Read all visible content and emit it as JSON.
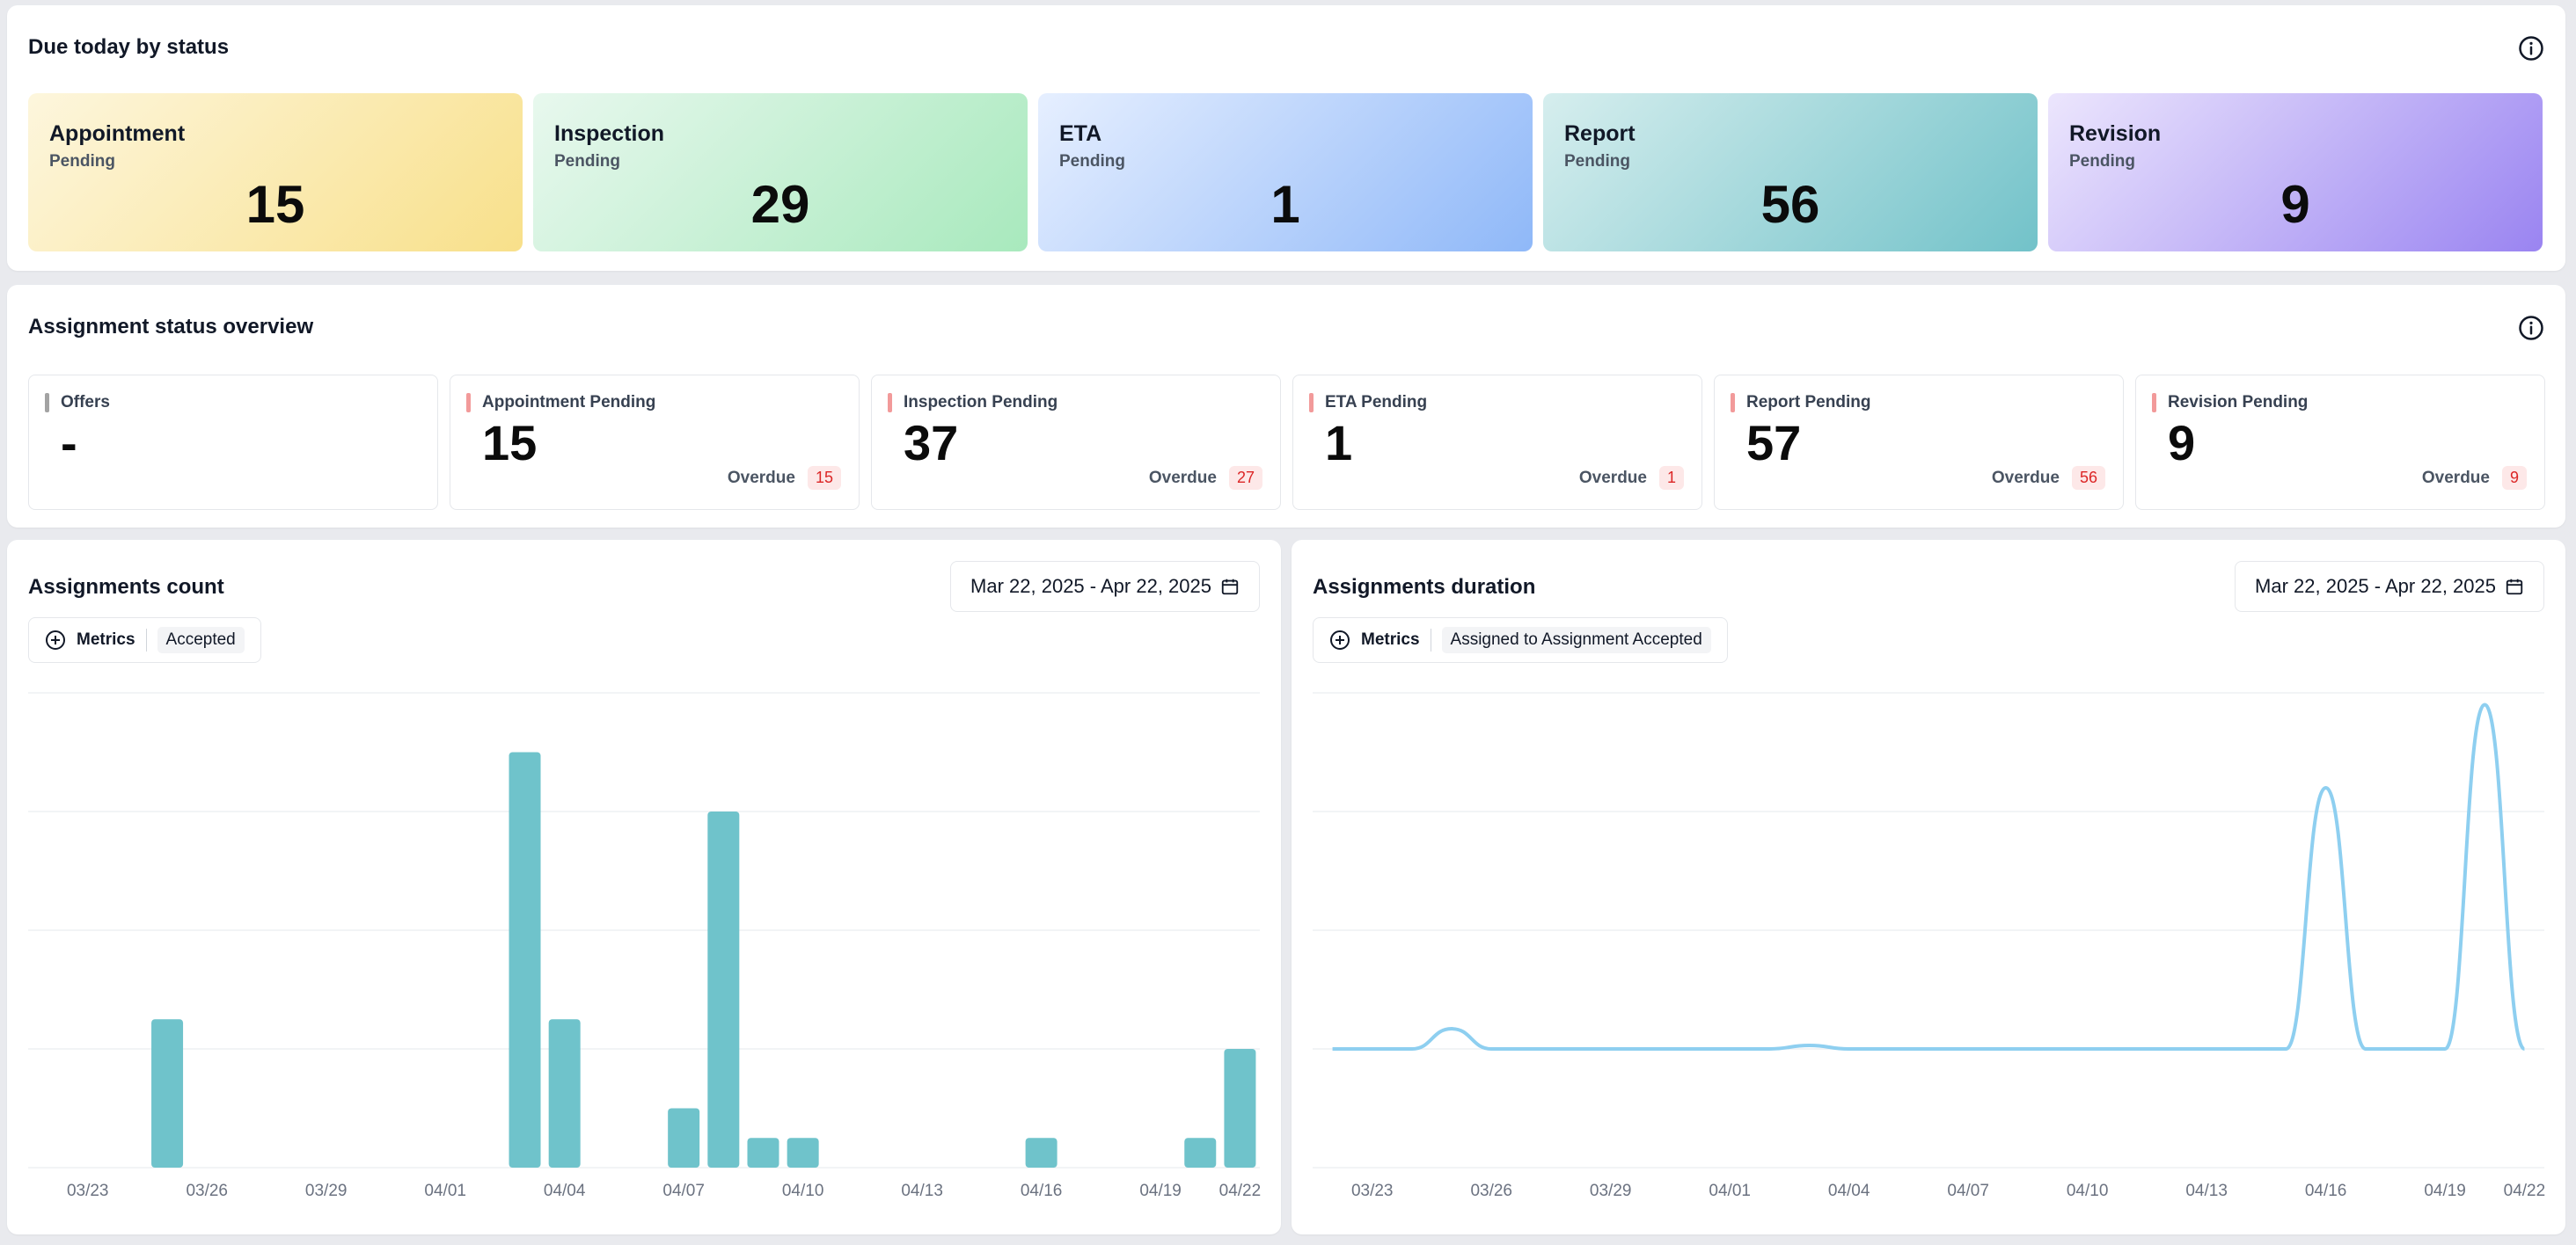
{
  "due_today": {
    "title": "Due today by status",
    "cards": [
      {
        "label": "Appointment",
        "sub": "Pending",
        "value": "15",
        "grad_from": "#fdf6dd",
        "grad_to": "#f8e08a"
      },
      {
        "label": "Inspection",
        "sub": "Pending",
        "value": "29",
        "grad_from": "#e8f8ee",
        "grad_to": "#a8e9bd"
      },
      {
        "label": "ETA",
        "sub": "Pending",
        "value": "1",
        "grad_from": "#e6efff",
        "grad_to": "#8fb8f8"
      },
      {
        "label": "Report",
        "sub": "Pending",
        "value": "56",
        "grad_from": "#d6eeee",
        "grad_to": "#72c2c9"
      },
      {
        "label": "Revision",
        "sub": "Pending",
        "value": "9",
        "grad_from": "#ece6fd",
        "grad_to": "#9a84f1"
      }
    ]
  },
  "overview": {
    "title": "Assignment status overview",
    "cards": [
      {
        "label": "Offers",
        "value": "-",
        "overdue_label": "",
        "overdue": "",
        "bar_color": "#a3a3a3"
      },
      {
        "label": "Appointment Pending",
        "value": "15",
        "overdue_label": "Overdue",
        "overdue": "15",
        "bar_color": "#f29a9a"
      },
      {
        "label": "Inspection Pending",
        "value": "37",
        "overdue_label": "Overdue",
        "overdue": "27",
        "bar_color": "#f29a9a"
      },
      {
        "label": "ETA Pending",
        "value": "1",
        "overdue_label": "Overdue",
        "overdue": "1",
        "bar_color": "#f29a9a"
      },
      {
        "label": "Report Pending",
        "value": "57",
        "overdue_label": "Overdue",
        "overdue": "56",
        "bar_color": "#f29a9a"
      },
      {
        "label": "Revision Pending",
        "value": "9",
        "overdue_label": "Overdue",
        "overdue": "9",
        "bar_color": "#f29a9a"
      }
    ]
  },
  "count_panel": {
    "title": "Assignments count",
    "date_range": "Mar 22, 2025 - Apr 22, 2025",
    "metrics_label": "Metrics",
    "metric_chip": "Accepted"
  },
  "duration_panel": {
    "title": "Assignments duration",
    "date_range": "Mar 22, 2025 - Apr 22, 2025",
    "metrics_label": "Metrics",
    "metric_chip": "Assigned to Assignment Accepted"
  },
  "chart_data": [
    {
      "type": "bar",
      "title": "Assignments count",
      "xlabel": "",
      "ylabel": "",
      "color": "#6fc3cb",
      "x_ticks": [
        "03/23",
        "03/26",
        "03/29",
        "04/01",
        "04/04",
        "04/07",
        "04/10",
        "04/13",
        "04/16",
        "04/19",
        "04/22"
      ],
      "ylim": [
        0,
        4
      ],
      "grid": true,
      "values": [
        0,
        0,
        0,
        1.25,
        0,
        0,
        0,
        0,
        0,
        0,
        0,
        0,
        3.5,
        1.25,
        0,
        0,
        0.5,
        3.0,
        0.25,
        0.25,
        0,
        0,
        0,
        0,
        0,
        0.25,
        0,
        0,
        0,
        0.25,
        1.0
      ]
    },
    {
      "type": "line",
      "title": "Assignments duration",
      "xlabel": "",
      "ylabel": "",
      "color": "#8ecff0",
      "x_ticks": [
        "03/23",
        "03/26",
        "03/29",
        "04/01",
        "04/04",
        "04/07",
        "04/10",
        "04/13",
        "04/16",
        "04/19",
        "04/22"
      ],
      "ylim": [
        0,
        4
      ],
      "grid": true,
      "values": [
        1,
        1,
        1,
        1.17,
        1,
        1,
        1,
        1,
        1,
        1,
        1,
        1,
        1.03,
        1,
        1,
        1,
        1,
        1,
        1,
        1,
        1,
        1,
        1,
        1,
        1,
        3.2,
        1,
        1,
        1,
        3.9,
        1
      ]
    }
  ]
}
